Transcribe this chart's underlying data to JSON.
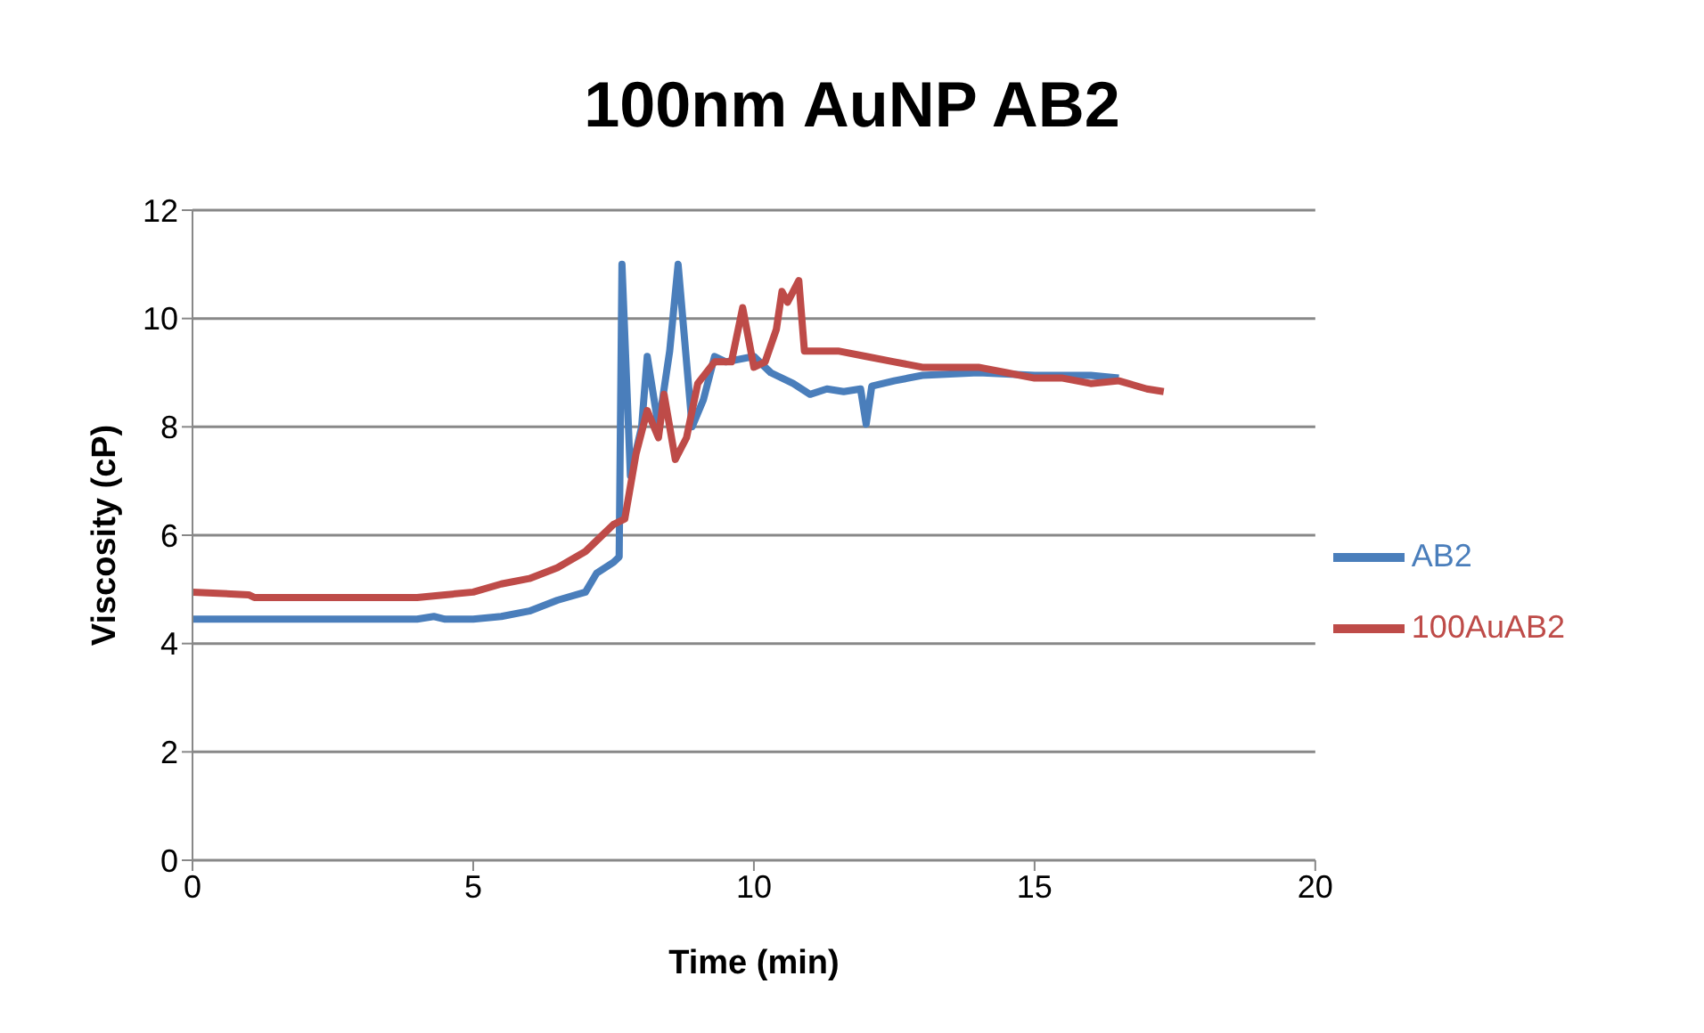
{
  "chart_data": {
    "type": "line",
    "title": "100nm AuNP AB2",
    "xlabel": "Time (min)",
    "ylabel": "Viscosity (cP)",
    "xlim": [
      0,
      20
    ],
    "xticks": [
      0,
      5,
      10,
      15,
      20
    ],
    "ylim": [
      0,
      12
    ],
    "yticks": [
      0,
      2,
      4,
      6,
      8,
      10,
      12
    ],
    "grid": "y",
    "legend": "right",
    "marker": "none",
    "line_style": "solid",
    "series": [
      {
        "name": "AB2",
        "color": "#4a7ebb",
        "x": [
          0,
          2,
          4,
          4.3,
          4.5,
          5,
          5.5,
          6,
          6.5,
          7,
          7.2,
          7.5,
          7.6,
          7.65,
          7.8,
          8.0,
          8.1,
          8.3,
          8.5,
          8.65,
          8.9,
          9.1,
          9.3,
          9.5,
          10,
          10.3,
          10.7,
          11,
          11.3,
          11.6,
          11.9,
          12,
          12.1,
          12.5,
          13,
          14,
          15,
          16,
          16.5
        ],
        "values": [
          4.45,
          4.45,
          4.45,
          4.5,
          4.45,
          4.45,
          4.5,
          4.6,
          4.8,
          4.95,
          5.3,
          5.5,
          5.6,
          11,
          7.1,
          8.0,
          9.3,
          8.0,
          9.4,
          11,
          8.0,
          8.5,
          9.3,
          9.2,
          9.3,
          9.0,
          8.8,
          8.6,
          8.7,
          8.65,
          8.7,
          8.05,
          8.75,
          8.85,
          8.95,
          9.0,
          8.95,
          8.95,
          8.9
        ]
      },
      {
        "name": "100AuAB2",
        "color": "#be4b48",
        "x": [
          0,
          1,
          1.1,
          4,
          4.5,
          5,
          5.5,
          6,
          6.5,
          7,
          7.3,
          7.5,
          7.7,
          7.9,
          8.1,
          8.3,
          8.4,
          8.6,
          8.8,
          9,
          9.3,
          9.6,
          9.8,
          10,
          10.2,
          10.4,
          10.5,
          10.6,
          10.8,
          10.9,
          11.5,
          12,
          12.5,
          13,
          13.5,
          14,
          14.5,
          15,
          15.5,
          16,
          16.5,
          17,
          17.3
        ],
        "values": [
          4.95,
          4.9,
          4.85,
          4.85,
          4.9,
          4.95,
          5.1,
          5.2,
          5.4,
          5.7,
          6.0,
          6.2,
          6.3,
          7.5,
          8.3,
          7.8,
          8.6,
          7.4,
          7.8,
          8.8,
          9.2,
          9.2,
          10.2,
          9.1,
          9.2,
          9.8,
          10.5,
          10.3,
          10.7,
          9.4,
          9.4,
          9.3,
          9.2,
          9.1,
          9.1,
          9.1,
          9.0,
          8.9,
          8.9,
          8.8,
          8.85,
          8.7,
          8.65
        ]
      }
    ]
  }
}
